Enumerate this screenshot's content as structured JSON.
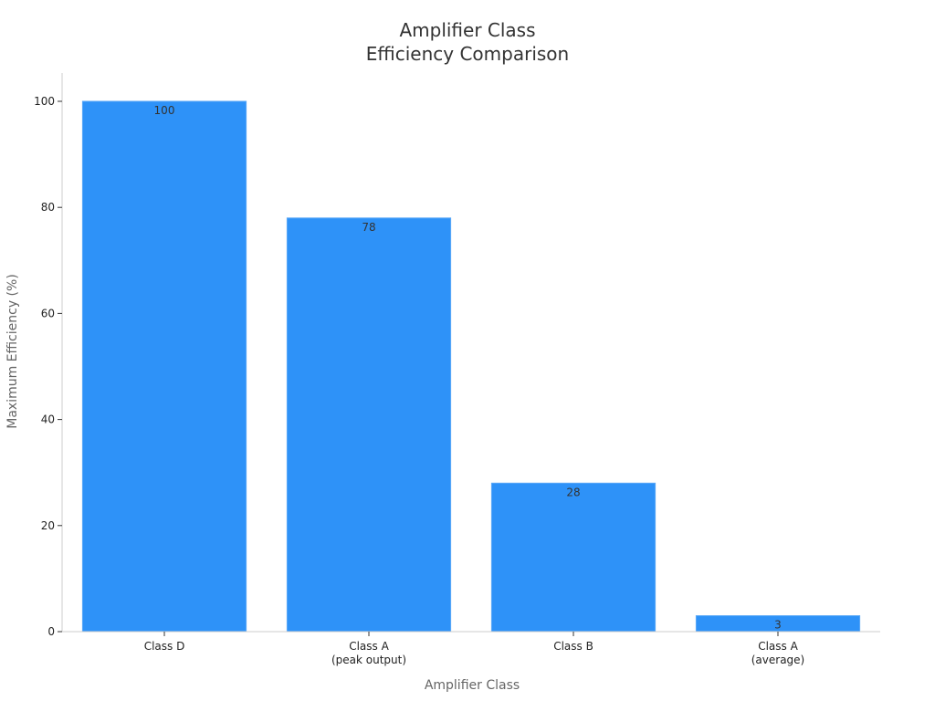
{
  "chart_data": {
    "type": "bar",
    "title": [
      "Amplifier Class",
      "Efficiency Comparison"
    ],
    "xlabel": "Amplifier Class",
    "ylabel": "Maximum Efficiency (%)",
    "categories": [
      [
        "Class D"
      ],
      [
        "Class A",
        "(peak output)"
      ],
      [
        "Class B"
      ],
      [
        "Class A",
        "(average)"
      ]
    ],
    "values": [
      100,
      78,
      28,
      3
    ],
    "data_labels": [
      "100",
      "78",
      "28",
      "3"
    ],
    "ylim": [
      0,
      105
    ],
    "yticks": [
      0,
      20,
      40,
      60,
      80,
      100
    ],
    "grid": false,
    "legend": "none",
    "colors": {
      "bar": "#2e92f8",
      "bar_edge": "#5aa8f8"
    }
  }
}
